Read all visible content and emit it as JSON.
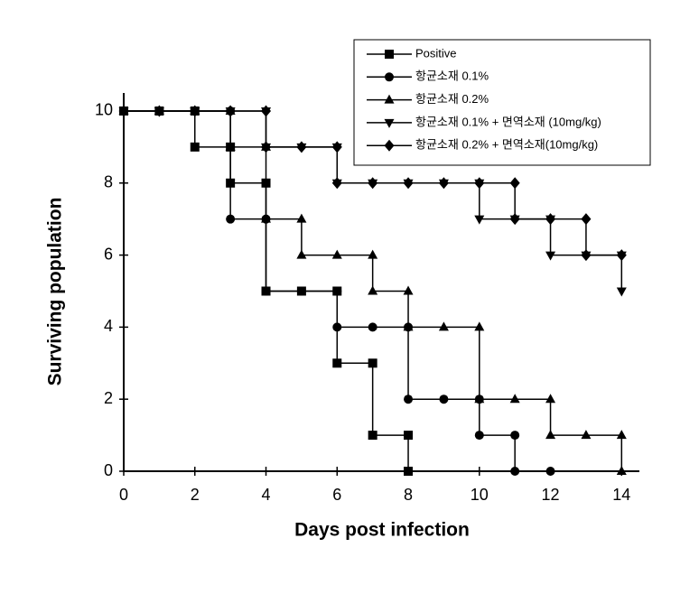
{
  "chart_data": {
    "type": "line",
    "x_label": "Days post infection",
    "y_label": "Surviving population",
    "xlim": [
      0,
      14.5
    ],
    "ylim": [
      0,
      10.5
    ],
    "xticks": [
      0,
      2,
      4,
      6,
      8,
      10,
      12,
      14
    ],
    "yticks": [
      0,
      2,
      4,
      6,
      8,
      10
    ],
    "series": [
      {
        "name": "Positive",
        "color": "#000000",
        "marker": "square",
        "x": [
          0,
          1,
          2,
          2,
          3,
          3,
          4,
          4,
          5,
          6,
          6,
          7,
          7,
          8,
          8
        ],
        "values": [
          10,
          10,
          10,
          9,
          9,
          8,
          8,
          5,
          5,
          5,
          3,
          3,
          1,
          1,
          0
        ]
      },
      {
        "name": "항균소재 0.1%",
        "color": "#000000",
        "marker": "circle",
        "x": [
          0,
          1,
          2,
          3,
          3,
          4,
          4,
          5,
          6,
          6,
          7,
          8,
          8,
          9,
          10,
          10,
          11,
          11,
          12
        ],
        "values": [
          10,
          10,
          10,
          10,
          7,
          7,
          5,
          5,
          5,
          4,
          4,
          4,
          2,
          2,
          2,
          1,
          1,
          0,
          0
        ]
      },
      {
        "name": "항균소재 0.2%",
        "color": "#000000",
        "marker": "triangle-up",
        "x": [
          0,
          1,
          2,
          3,
          3,
          4,
          4,
          5,
          5,
          6,
          7,
          7,
          8,
          8,
          9,
          10,
          10,
          11,
          12,
          12,
          13,
          14,
          14
        ],
        "values": [
          10,
          10,
          10,
          10,
          9,
          9,
          7,
          7,
          6,
          6,
          6,
          5,
          5,
          4,
          4,
          4,
          2,
          2,
          2,
          1,
          1,
          1,
          0
        ]
      },
      {
        "name": "항균소재 0.1% + 면역소재 (10mg/kg)",
        "color": "#000000",
        "marker": "triangle-down",
        "x": [
          0,
          1,
          2,
          3,
          4,
          4,
          5,
          6,
          6,
          7,
          8,
          9,
          10,
          10,
          11,
          12,
          12,
          13,
          14,
          14
        ],
        "values": [
          10,
          10,
          10,
          10,
          10,
          9,
          9,
          9,
          8,
          8,
          8,
          8,
          8,
          7,
          7,
          7,
          6,
          6,
          6,
          5
        ]
      },
      {
        "name": "항균소재 0.2% + 면역소재(10mg/kg)",
        "color": "#000000",
        "marker": "diamond",
        "x": [
          0,
          1,
          2,
          3,
          4,
          4,
          5,
          6,
          6,
          7,
          8,
          9,
          10,
          11,
          11,
          12,
          13,
          13,
          14
        ],
        "values": [
          10,
          10,
          10,
          10,
          10,
          9,
          9,
          9,
          8,
          8,
          8,
          8,
          8,
          8,
          7,
          7,
          7,
          6,
          6
        ]
      }
    ]
  }
}
